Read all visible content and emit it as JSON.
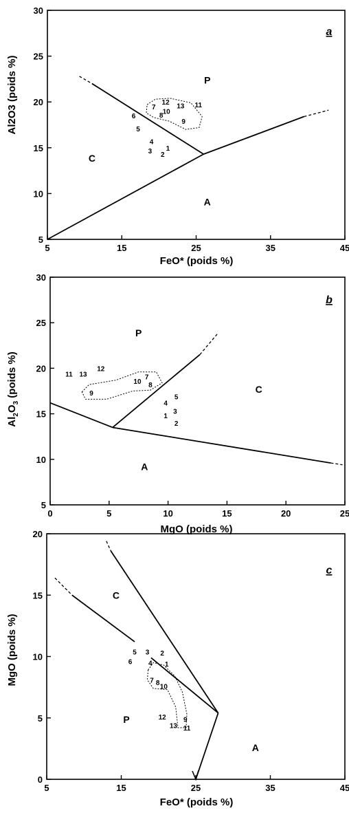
{
  "chart_data": [
    {
      "panel": "a",
      "type": "scatter",
      "xlabel": "FeO* (poids %)",
      "ylabel": "Al2O3 (poids %)",
      "xlim": [
        5,
        45
      ],
      "ylim": [
        5,
        30
      ],
      "xticks": [
        5,
        15,
        25,
        35,
        45
      ],
      "yticks": [
        5,
        10,
        15,
        20,
        25,
        30
      ],
      "fields": [
        {
          "name": "P",
          "x": 26.5,
          "y": 22
        },
        {
          "name": "C",
          "x": 11,
          "y": 13.5
        },
        {
          "name": "A",
          "x": 26.5,
          "y": 8.7
        }
      ],
      "points": [
        {
          "label": "1",
          "x": 21.2,
          "y": 15.0
        },
        {
          "label": "2",
          "x": 20.5,
          "y": 14.3
        },
        {
          "label": "3",
          "x": 18.8,
          "y": 14.7
        },
        {
          "label": "4",
          "x": 19.0,
          "y": 15.7
        },
        {
          "label": "5",
          "x": 17.2,
          "y": 17.1
        },
        {
          "label": "6",
          "x": 16.6,
          "y": 18.5
        },
        {
          "label": "7",
          "x": 19.3,
          "y": 19.5
        },
        {
          "label": "8",
          "x": 20.3,
          "y": 18.6
        },
        {
          "label": "9",
          "x": 23.3,
          "y": 17.9
        },
        {
          "label": "10",
          "x": 21.0,
          "y": 19.0
        },
        {
          "label": "11",
          "x": 25.3,
          "y": 19.7
        },
        {
          "label": "12",
          "x": 20.9,
          "y": 20.0
        },
        {
          "label": "13",
          "x": 22.9,
          "y": 19.6
        }
      ],
      "boundaries": [
        {
          "points": [
            [
              5,
              5
            ],
            [
              26,
              14.3
            ]
          ],
          "style": "solid"
        },
        {
          "points": [
            [
              11,
              22
            ],
            [
              26,
              14.3
            ]
          ],
          "style": "solid"
        },
        {
          "points": [
            [
              9.3,
              22.8
            ],
            [
              11,
              22
            ]
          ],
          "style": "dashed"
        },
        {
          "points": [
            [
              26,
              14.3
            ],
            [
              39.5,
              18.4
            ]
          ],
          "style": "solid"
        },
        {
          "points": [
            [
              39.5,
              18.4
            ],
            [
              42.8,
              19.1
            ]
          ],
          "style": "dashed"
        }
      ],
      "group_outline": [
        [
          18.4,
          19.7
        ],
        [
          19.5,
          20.3
        ],
        [
          21.5,
          20.4
        ],
        [
          24.3,
          19.9
        ],
        [
          25.8,
          18.4
        ],
        [
          25.4,
          17.2
        ],
        [
          23.6,
          17.0
        ],
        [
          21.4,
          17.9
        ],
        [
          19.3,
          18.3
        ],
        [
          18.3,
          18.8
        ]
      ]
    },
    {
      "panel": "b",
      "type": "scatter",
      "xlabel": "MgO (poids %)",
      "ylabel": "Al2O3 (poids %)",
      "xlim": [
        0,
        25
      ],
      "ylim": [
        5,
        30
      ],
      "xticks": [
        0,
        5,
        10,
        15,
        20,
        25
      ],
      "yticks": [
        5,
        10,
        15,
        20,
        25,
        30
      ],
      "fields": [
        {
          "name": "P",
          "x": 7.5,
          "y": 23.5
        },
        {
          "name": "C",
          "x": 17.7,
          "y": 17.3
        },
        {
          "name": "A",
          "x": 8.0,
          "y": 8.8
        }
      ],
      "points": [
        {
          "label": "1",
          "x": 9.8,
          "y": 14.8
        },
        {
          "label": "2",
          "x": 10.7,
          "y": 14.0
        },
        {
          "label": "3",
          "x": 10.6,
          "y": 15.3
        },
        {
          "label": "4",
          "x": 9.8,
          "y": 16.2
        },
        {
          "label": "5",
          "x": 10.7,
          "y": 16.9
        },
        {
          "label": "7",
          "x": 8.2,
          "y": 19.1
        },
        {
          "label": "8",
          "x": 8.5,
          "y": 18.2
        },
        {
          "label": "9",
          "x": 3.5,
          "y": 17.3
        },
        {
          "label": "10",
          "x": 7.4,
          "y": 18.6
        },
        {
          "label": "11",
          "x": 1.6,
          "y": 19.4
        },
        {
          "label": "12",
          "x": 4.3,
          "y": 20.0
        },
        {
          "label": "13",
          "x": 2.8,
          "y": 19.4
        }
      ],
      "boundaries": [
        {
          "points": [
            [
              0,
              16.2
            ],
            [
              5.3,
              13.5
            ]
          ],
          "style": "solid"
        },
        {
          "points": [
            [
              5.3,
              13.5
            ],
            [
              23.8,
              9.6
            ]
          ],
          "style": "solid"
        },
        {
          "points": [
            [
              23.8,
              9.6
            ],
            [
              24.8,
              9.4
            ]
          ],
          "style": "dashed"
        },
        {
          "points": [
            [
              5.3,
              13.5
            ],
            [
              12.7,
              21.5
            ]
          ],
          "style": "solid"
        },
        {
          "points": [
            [
              12.7,
              21.5
            ],
            [
              14.2,
              23.8
            ]
          ],
          "style": "dashed"
        }
      ],
      "group_outline": [
        [
          2.7,
          17.4
        ],
        [
          3.3,
          18.2
        ],
        [
          5.6,
          18.7
        ],
        [
          7.5,
          19.6
        ],
        [
          9.0,
          19.6
        ],
        [
          9.5,
          18.4
        ],
        [
          8.5,
          17.6
        ],
        [
          7.0,
          17.5
        ],
        [
          4.8,
          16.6
        ],
        [
          3.0,
          16.6
        ]
      ]
    },
    {
      "panel": "c",
      "type": "scatter",
      "xlabel": "FeO* (poids %)",
      "ylabel": "MgO (poids %)",
      "xlim": [
        5,
        45
      ],
      "ylim": [
        0,
        20
      ],
      "xticks": [
        5,
        15,
        25,
        35,
        45
      ],
      "yticks": [
        0,
        5,
        10,
        15,
        20
      ],
      "fields": [
        {
          "name": "C",
          "x": 14.3,
          "y": 14.7
        },
        {
          "name": "P",
          "x": 15.7,
          "y": 4.6
        },
        {
          "name": "A",
          "x": 33,
          "y": 2.3
        }
      ],
      "points": [
        {
          "label": "1",
          "x": 21.1,
          "y": 9.4
        },
        {
          "label": "2",
          "x": 20.5,
          "y": 10.3
        },
        {
          "label": "3",
          "x": 18.5,
          "y": 10.4
        },
        {
          "label": "4",
          "x": 18.9,
          "y": 9.5
        },
        {
          "label": "5",
          "x": 16.8,
          "y": 10.4
        },
        {
          "label": "6",
          "x": 16.2,
          "y": 9.6
        },
        {
          "label": "7",
          "x": 19.1,
          "y": 8.1
        },
        {
          "label": "8",
          "x": 19.9,
          "y": 7.9
        },
        {
          "label": "9",
          "x": 23.6,
          "y": 4.9
        },
        {
          "label": "10",
          "x": 20.7,
          "y": 7.6
        },
        {
          "label": "11",
          "x": 23.8,
          "y": 4.2
        },
        {
          "label": "12",
          "x": 20.5,
          "y": 5.1
        },
        {
          "label": "13",
          "x": 22.0,
          "y": 4.4
        }
      ],
      "boundaries": [
        {
          "points": [
            [
              8.4,
              15
            ],
            [
              16.8,
              11.2
            ]
          ],
          "style": "solid"
        },
        {
          "points": [
            [
              6.1,
              16.4
            ],
            [
              8.4,
              15
            ]
          ],
          "style": "dashed"
        },
        {
          "points": [
            [
              13.6,
              18.6
            ],
            [
              28,
              5.4
            ]
          ],
          "style": "solid"
        },
        {
          "points": [
            [
              13,
              19.4
            ],
            [
              13.6,
              18.6
            ]
          ],
          "style": "dashed"
        },
        {
          "points": [
            [
              19,
              9.9
            ],
            [
              28,
              5.4
            ]
          ],
          "style": "solid"
        },
        {
          "points": [
            [
              28,
              5.4
            ],
            [
              25,
              0
            ]
          ],
          "style": "solid"
        }
      ],
      "group_outline": [
        [
          18.6,
          8.9
        ],
        [
          19.3,
          9.5
        ],
        [
          20.7,
          9.3
        ],
        [
          22.2,
          8.4
        ],
        [
          23.2,
          7.1
        ],
        [
          23.8,
          5.3
        ],
        [
          23.7,
          4.2
        ],
        [
          22.6,
          4.2
        ],
        [
          22.3,
          5.9
        ],
        [
          21.2,
          7.3
        ],
        [
          19.3,
          7.4
        ],
        [
          18.5,
          8.1
        ]
      ]
    }
  ]
}
